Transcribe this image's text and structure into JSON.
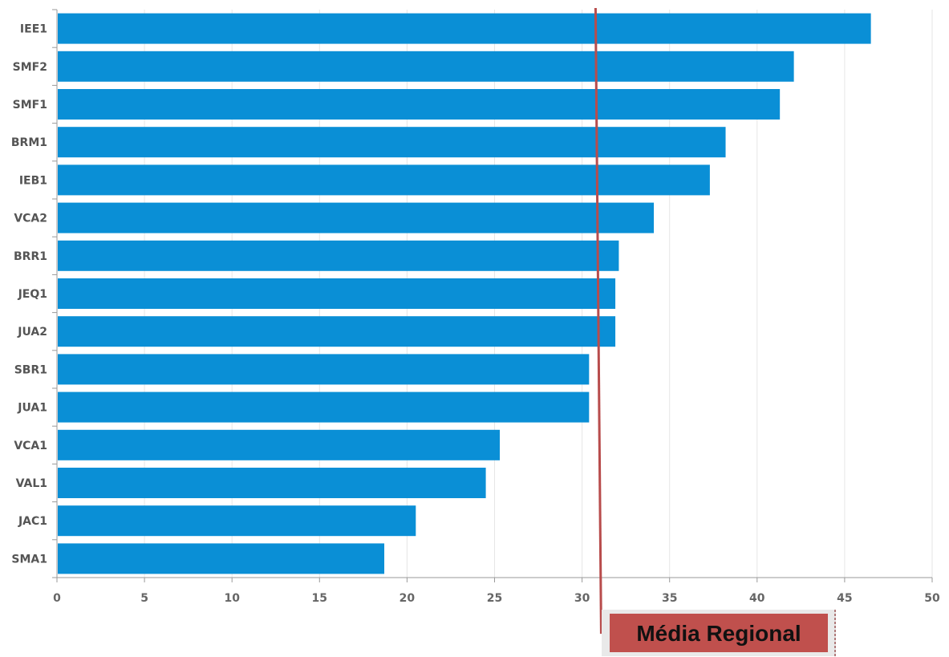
{
  "chart_data": {
    "type": "bar",
    "orientation": "horizontal",
    "categories": [
      "IEE1",
      "SMF2",
      "SMF1",
      "BRM1",
      "IEB1",
      "VCA2",
      "BRR1",
      "JEQ1",
      "JUA2",
      "SBR1",
      "JUA1",
      "VCA1",
      "VAL1",
      "JAC1",
      "SMA1"
    ],
    "values": [
      46.5,
      42.1,
      41.3,
      38.2,
      37.3,
      34.1,
      32.1,
      31.9,
      31.9,
      30.4,
      30.4,
      25.3,
      24.5,
      20.5,
      18.7
    ],
    "xlim": [
      0,
      50
    ],
    "xticks": [
      "0",
      "5",
      "10",
      "15",
      "20",
      "25",
      "30",
      "35",
      "40",
      "45",
      "50"
    ],
    "grid": true,
    "title": "",
    "xlabel": "",
    "ylabel": "",
    "bar_color": "#0a8fd6",
    "reference_line": {
      "label": "Média Regional",
      "value": 31,
      "color": "#b84c4c",
      "label_bg": "#c0504d"
    }
  }
}
